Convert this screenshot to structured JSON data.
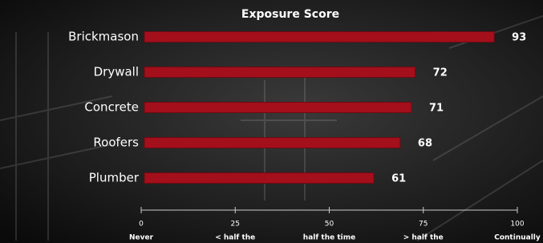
{
  "chart_data": {
    "type": "bar",
    "orientation": "horizontal",
    "title": "Exposure Score",
    "categories": [
      "Brickmason",
      "Drywall",
      "Concrete",
      "Roofers",
      "Plumber"
    ],
    "values": [
      93,
      72,
      71,
      68,
      61
    ],
    "color": "#a30f1b",
    "xlim": [
      0,
      100
    ],
    "xticks": [
      0,
      25,
      50,
      75,
      100
    ],
    "xtick_descriptions": [
      "Never",
      "< half the",
      "half the time",
      "> half the",
      "Continually"
    ]
  }
}
